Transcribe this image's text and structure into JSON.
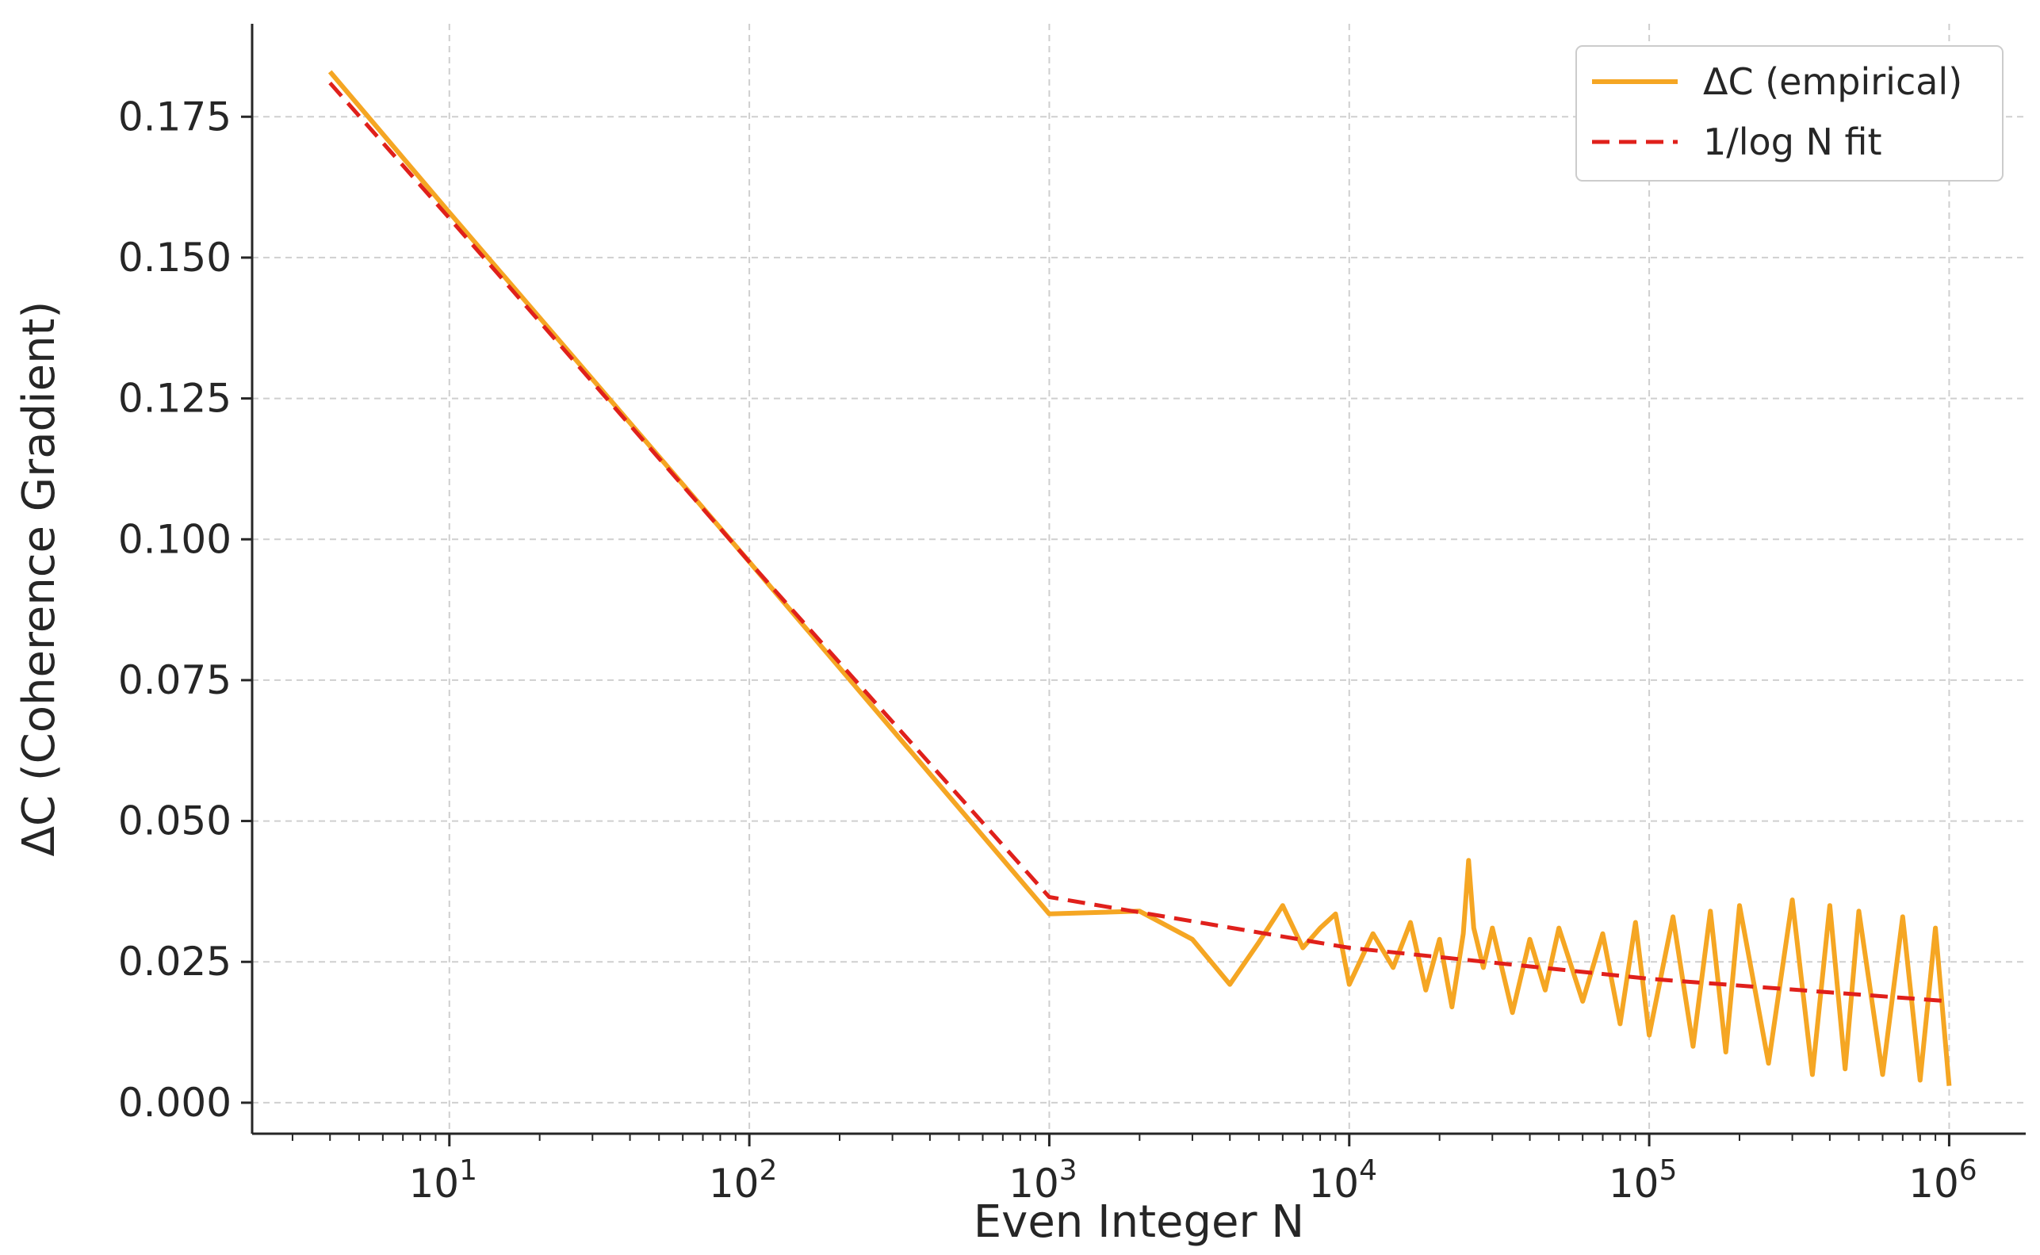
{
  "chart_data": {
    "type": "line",
    "title": "",
    "xlabel": "Even Integer N",
    "ylabel": "ΔC (Coherence Gradient)",
    "xscale": "log",
    "xlim": [
      2.2,
      1800000
    ],
    "ylim": [
      -0.0055,
      0.1915
    ],
    "xticks": [
      {
        "value": 10,
        "base": "10",
        "exp": "1"
      },
      {
        "value": 100,
        "base": "10",
        "exp": "2"
      },
      {
        "value": 1000,
        "base": "10",
        "exp": "3"
      },
      {
        "value": 10000,
        "base": "10",
        "exp": "4"
      },
      {
        "value": 100000,
        "base": "10",
        "exp": "5"
      },
      {
        "value": 1000000,
        "base": "10",
        "exp": "6"
      }
    ],
    "yticks": [
      {
        "value": 0.0,
        "label": "0.000"
      },
      {
        "value": 0.025,
        "label": "0.025"
      },
      {
        "value": 0.05,
        "label": "0.050"
      },
      {
        "value": 0.075,
        "label": "0.075"
      },
      {
        "value": 0.1,
        "label": "0.100"
      },
      {
        "value": 0.125,
        "label": "0.125"
      },
      {
        "value": 0.15,
        "label": "0.150"
      },
      {
        "value": 0.175,
        "label": "0.175"
      }
    ],
    "grid": true,
    "legend_position": "top-right",
    "series": [
      {
        "name": "ΔC (empirical)",
        "style": "solid",
        "color": "#F5A623",
        "x": [
          4,
          10,
          100,
          1000,
          2000,
          3000,
          4000,
          5000,
          6000,
          7000,
          8000,
          9000,
          10000,
          12000,
          14000,
          16000,
          18000,
          20000,
          22000,
          24000,
          25000,
          26000,
          28000,
          30000,
          35000,
          40000,
          45000,
          50000,
          60000,
          70000,
          80000,
          90000,
          100000,
          120000,
          140000,
          160000,
          180000,
          200000,
          250000,
          300000,
          350000,
          400000,
          450000,
          500000,
          600000,
          700000,
          800000,
          900000,
          1000000
        ],
        "y": [
          0.183,
          0.158,
          0.096,
          0.0335,
          0.034,
          0.029,
          0.021,
          0.0285,
          0.035,
          0.0275,
          0.031,
          0.0335,
          0.021,
          0.03,
          0.024,
          0.032,
          0.02,
          0.029,
          0.017,
          0.03,
          0.043,
          0.031,
          0.024,
          0.031,
          0.016,
          0.029,
          0.02,
          0.031,
          0.018,
          0.03,
          0.014,
          0.032,
          0.012,
          0.033,
          0.01,
          0.034,
          0.009,
          0.035,
          0.007,
          0.036,
          0.005,
          0.035,
          0.006,
          0.034,
          0.005,
          0.033,
          0.004,
          0.031,
          0.003
        ]
      },
      {
        "name": "1/log N fit",
        "style": "dashed",
        "color": "#E0201B",
        "x": [
          4,
          10,
          100,
          1000,
          10000,
          100000,
          1000000
        ],
        "y": [
          0.181,
          0.157,
          0.096,
          0.0365,
          0.0275,
          0.022,
          0.018
        ]
      }
    ]
  }
}
